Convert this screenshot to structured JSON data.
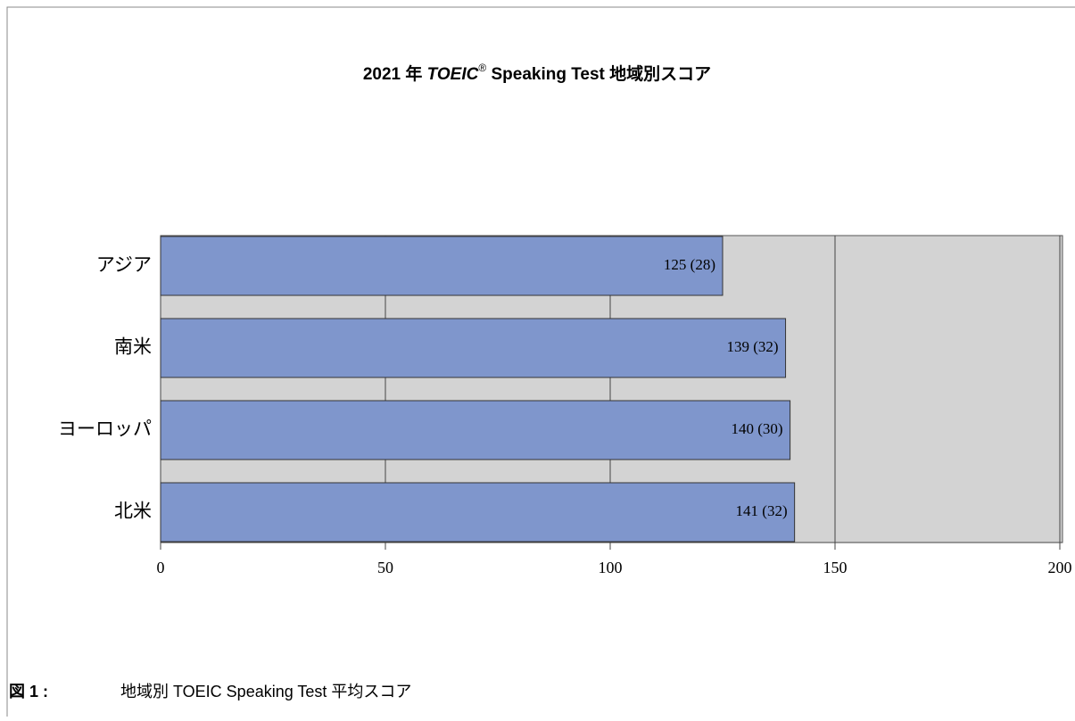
{
  "chart_data": {
    "type": "barh",
    "title": [
      "2021 年 ",
      "TOEIC",
      "®",
      " Speaking Test 地域別スコア"
    ],
    "categories": [
      "アジア",
      "南米",
      "ヨーロッパ",
      "北米"
    ],
    "values": [
      125,
      139,
      140,
      141
    ],
    "value_labels": [
      "125 (28)",
      "139 (32)",
      "140 (30)",
      "141 (32)"
    ],
    "color": "#7f96cc",
    "xlim": [
      0,
      200
    ],
    "xticks": [
      0,
      50,
      100,
      150,
      200
    ],
    "grid": true
  },
  "caption": {
    "label": "図 1 :",
    "text": "地域別 TOEIC Speaking Test 平均スコア"
  }
}
